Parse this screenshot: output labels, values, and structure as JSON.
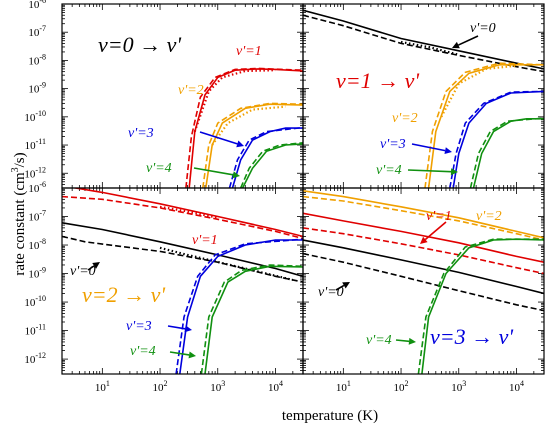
{
  "figure": {
    "ylabel_main": "rate constant (cm",
    "ylabel_sup": "3",
    "ylabel_tail": "/s)",
    "xlabel": "temperature (K)"
  },
  "chart_data": [
    {
      "type": "line",
      "panel": "top-left",
      "title": "v=0 → v'",
      "title_color": "#000000",
      "xscale": "log",
      "yscale": "log",
      "xlim": [
        2,
        30000
      ],
      "ylim": [
        3e-13,
        1e-06
      ],
      "xticks": [
        "10^1",
        "10^2",
        "10^3",
        "10^4"
      ],
      "yticks": [
        "10^-6",
        "10^-7",
        "10^-8",
        "10^-9",
        "10^-10",
        "10^-11",
        "10^-12"
      ],
      "series": [
        {
          "name": "v'=1",
          "color": "#e00000",
          "solid": [
            [
              320,
              3e-13
            ],
            [
              400,
              3e-11
            ],
            [
              600,
              6e-10
            ],
            [
              1000,
              2.5e-09
            ],
            [
              2000,
              4.5e-09
            ],
            [
              5000,
              5e-09
            ],
            [
              10000,
              4.8e-09
            ],
            [
              30000,
              4.2e-09
            ]
          ],
          "dashed": [
            [
              280,
              3e-13
            ],
            [
              350,
              2e-11
            ],
            [
              500,
              5e-10
            ],
            [
              900,
              2.5e-09
            ],
            [
              2000,
              4.8e-09
            ],
            [
              5000,
              5.2e-09
            ],
            [
              30000,
              4.5e-09
            ]
          ],
          "dotted": [
            [
              400,
              3e-11
            ],
            [
              700,
              8e-10
            ],
            [
              1200,
              2.5e-09
            ],
            [
              3000,
              4.2e-09
            ],
            [
              10000,
              4.5e-09
            ]
          ],
          "label": "v'=1"
        },
        {
          "name": "v'=2",
          "color": "#f0a000",
          "solid": [
            [
              620,
              3e-13
            ],
            [
              800,
              1e-11
            ],
            [
              1200,
              6e-11
            ],
            [
              3000,
              2e-10
            ],
            [
              8000,
              2.8e-10
            ],
            [
              30000,
              2.6e-10
            ]
          ],
          "dashed": [
            [
              550,
              3e-13
            ],
            [
              700,
              1e-11
            ],
            [
              1000,
              6e-11
            ],
            [
              2500,
              2e-10
            ],
            [
              8000,
              3e-10
            ],
            [
              30000,
              2.8e-10
            ]
          ],
          "dotted": [
            [
              800,
              1e-11
            ],
            [
              1500,
              6e-11
            ],
            [
              4000,
              1.8e-10
            ],
            [
              15000,
              2.3e-10
            ]
          ],
          "label": "v'=2"
        },
        {
          "name": "v'=3",
          "color": "#0000dd",
          "solid": [
            [
              1800,
              3e-13
            ],
            [
              2500,
              3e-12
            ],
            [
              4000,
              1.5e-11
            ],
            [
              8000,
              3e-11
            ],
            [
              15000,
              4e-11
            ],
            [
              30000,
              4e-11
            ]
          ],
          "dashed": [
            [
              1600,
              3e-13
            ],
            [
              2200,
              3e-12
            ],
            [
              3500,
              1.5e-11
            ],
            [
              7000,
              3e-11
            ],
            [
              30000,
              4.2e-11
            ]
          ],
          "label": "v'=3"
        },
        {
          "name": "v'=4",
          "color": "#109010",
          "solid": [
            [
              2700,
              3e-13
            ],
            [
              4000,
              1.5e-12
            ],
            [
              7000,
              6e-12
            ],
            [
              15000,
              1e-11
            ],
            [
              30000,
              1.1e-11
            ]
          ],
          "dashed": [
            [
              2500,
              3e-13
            ],
            [
              3500,
              1.5e-12
            ],
            [
              6000,
              6e-12
            ],
            [
              12000,
              1e-11
            ],
            [
              30000,
              1.2e-11
            ]
          ],
          "label": "v'=4"
        }
      ]
    },
    {
      "type": "line",
      "panel": "top-right",
      "title": "v=1 → v'",
      "title_color": "#e00000",
      "xscale": "log",
      "yscale": "log",
      "xlim": [
        2,
        30000
      ],
      "ylim": [
        3e-13,
        1e-06
      ],
      "series": [
        {
          "name": "v'=0",
          "color": "#000000",
          "solid": [
            [
              2,
              6e-07
            ],
            [
              10,
              2.5e-07
            ],
            [
              100,
              6e-08
            ],
            [
              1000,
              2.2e-08
            ],
            [
              10000,
              8e-09
            ],
            [
              30000,
              5e-09
            ]
          ],
          "dashed": [
            [
              2,
              4e-07
            ],
            [
              10,
              1.7e-07
            ],
            [
              100,
              4e-08
            ],
            [
              1000,
              1.5e-08
            ],
            [
              10000,
              6e-09
            ],
            [
              30000,
              4e-09
            ]
          ],
          "dotted": [
            [
              100,
              4.5e-08
            ],
            [
              300,
              3e-08
            ],
            [
              1000,
              1.6e-08
            ]
          ],
          "label": "v'=0"
        },
        {
          "name": "v'=2",
          "color": "#f0a000",
          "solid": [
            [
              300,
              3e-13
            ],
            [
              400,
              3e-11
            ],
            [
              700,
              8e-10
            ],
            [
              1500,
              3.5e-09
            ],
            [
              5000,
              7e-09
            ],
            [
              30000,
              7e-09
            ]
          ],
          "dashed": [
            [
              260,
              3e-13
            ],
            [
              350,
              3e-11
            ],
            [
              600,
              8e-10
            ],
            [
              1300,
              3.8e-09
            ],
            [
              5000,
              8e-09
            ],
            [
              30000,
              7e-09
            ]
          ],
          "dotted": [
            [
              500,
              1e-10
            ],
            [
              1000,
              1.5e-09
            ],
            [
              3000,
              5e-09
            ],
            [
              10000,
              6.5e-09
            ]
          ],
          "label": "v'=2"
        },
        {
          "name": "v'=3",
          "color": "#0000dd",
          "solid": [
            [
              800,
              3e-13
            ],
            [
              1000,
              5e-12
            ],
            [
              1500,
              6e-11
            ],
            [
              3000,
              3e-10
            ],
            [
              8000,
              7e-10
            ],
            [
              30000,
              8e-10
            ]
          ],
          "dashed": [
            [
              700,
              3e-13
            ],
            [
              900,
              5e-12
            ],
            [
              1300,
              6e-11
            ],
            [
              2700,
              3e-10
            ],
            [
              8000,
              7.5e-10
            ],
            [
              30000,
              8e-10
            ]
          ],
          "label": "v'=3"
        },
        {
          "name": "v'=4",
          "color": "#109010",
          "solid": [
            [
              1800,
              3e-13
            ],
            [
              2500,
              5e-12
            ],
            [
              4000,
              3e-11
            ],
            [
              8000,
              7e-11
            ],
            [
              15000,
              8.5e-11
            ],
            [
              30000,
              8.5e-11
            ]
          ],
          "dashed": [
            [
              1600,
              3e-13
            ],
            [
              2200,
              5e-12
            ],
            [
              3500,
              3e-11
            ],
            [
              7000,
              7e-11
            ],
            [
              30000,
              9e-11
            ]
          ],
          "label": "v'=4"
        }
      ]
    },
    {
      "type": "line",
      "panel": "bottom-left",
      "title": "v=2 → v'",
      "title_color": "#f0a000",
      "xscale": "log",
      "yscale": "log",
      "xlim": [
        2,
        30000
      ],
      "ylim": [
        3e-13,
        1e-06
      ],
      "series": [
        {
          "name": "v'=1",
          "color": "#e00000",
          "solid": [
            [
              2,
              1.2e-06
            ],
            [
              10,
              7e-07
            ],
            [
              100,
              2.8e-07
            ],
            [
              1000,
              1e-07
            ],
            [
              10000,
              3.5e-08
            ],
            [
              30000,
              2e-08
            ]
          ],
          "dashed": [
            [
              2,
              5e-07
            ],
            [
              10,
              4e-07
            ],
            [
              100,
              2e-07
            ],
            [
              1000,
              8e-08
            ],
            [
              10000,
              3e-08
            ],
            [
              30000,
              1.7e-08
            ]
          ],
          "dotted": [
            [
              100,
              2.2e-07
            ],
            [
              300,
              1.5e-07
            ],
            [
              1000,
              9e-08
            ]
          ],
          "label": "v'=1"
        },
        {
          "name": "v'=0",
          "color": "#000000",
          "solid": [
            [
              2,
              6e-08
            ],
            [
              10,
              3.5e-08
            ],
            [
              100,
              1.3e-08
            ],
            [
              1000,
              4.5e-09
            ],
            [
              10000,
              1.5e-09
            ],
            [
              30000,
              8e-10
            ]
          ],
          "dashed": [
            [
              2,
              2e-08
            ],
            [
              5,
              1.3e-08
            ],
            [
              20,
              9e-09
            ],
            [
              100,
              6e-09
            ],
            [
              1000,
              2.5e-09
            ],
            [
              10000,
              8e-10
            ],
            [
              30000,
              5e-10
            ]
          ],
          "dotted": [
            [
              100,
              8e-09
            ],
            [
              300,
              4.5e-09
            ],
            [
              3000,
              1.5e-09
            ],
            [
              20000,
              6e-10
            ]
          ],
          "label": "v'=0"
        },
        {
          "name": "v'=3",
          "color": "#0000dd",
          "solid": [
            [
              220,
              3e-13
            ],
            [
              300,
              3e-11
            ],
            [
              500,
              8e-10
            ],
            [
              1000,
              4e-09
            ],
            [
              3000,
              1e-08
            ],
            [
              10000,
              1.5e-08
            ],
            [
              30000,
              1.5e-08
            ]
          ],
          "dashed": [
            [
              190,
              3e-13
            ],
            [
              260,
              3e-11
            ],
            [
              450,
              8e-10
            ],
            [
              900,
              4.5e-09
            ],
            [
              3000,
              1.1e-08
            ],
            [
              30000,
              1.6e-08
            ]
          ],
          "label": "v'=3"
        },
        {
          "name": "v'=4",
          "color": "#109010",
          "solid": [
            [
              600,
              3e-13
            ],
            [
              800,
              3e-11
            ],
            [
              1500,
              5e-10
            ],
            [
              3000,
              1.2e-09
            ],
            [
              8000,
              1.8e-09
            ],
            [
              30000,
              1.7e-09
            ]
          ],
          "dashed": [
            [
              520,
              3e-13
            ],
            [
              700,
              3e-11
            ],
            [
              1300,
              5e-10
            ],
            [
              2600,
              1.3e-09
            ],
            [
              8000,
              2e-09
            ],
            [
              30000,
              1.8e-09
            ]
          ],
          "label": "v'=4"
        }
      ]
    },
    {
      "type": "line",
      "panel": "bottom-right",
      "title": "v=3 → v'",
      "title_color": "#0000dd",
      "xscale": "log",
      "yscale": "log",
      "xlim": [
        2,
        30000
      ],
      "ylim": [
        3e-13,
        1e-06
      ],
      "series": [
        {
          "name": "v'=2",
          "color": "#f0a000",
          "solid": [
            [
              2,
              8e-07
            ],
            [
              10,
              5e-07
            ],
            [
              100,
              2.2e-07
            ],
            [
              1000,
              9e-08
            ],
            [
              10000,
              3e-08
            ],
            [
              30000,
              1.8e-08
            ]
          ],
          "dashed": [
            [
              2,
              5e-07
            ],
            [
              10,
              3.5e-07
            ],
            [
              100,
              1.6e-07
            ],
            [
              1000,
              7e-08
            ],
            [
              10000,
              2.5e-08
            ],
            [
              30000,
              1.5e-08
            ]
          ],
          "label": "v'=2"
        },
        {
          "name": "v'=1",
          "color": "#e00000",
          "solid": [
            [
              2,
              1.3e-07
            ],
            [
              10,
              7e-08
            ],
            [
              100,
              3e-08
            ],
            [
              1000,
              1.2e-08
            ],
            [
              10000,
              4e-09
            ],
            [
              30000,
              2.5e-09
            ]
          ],
          "dashed": [
            [
              2,
              4e-08
            ],
            [
              10,
              2.5e-08
            ],
            [
              100,
              1.1e-08
            ],
            [
              1000,
              4.5e-09
            ],
            [
              10000,
              1.6e-09
            ],
            [
              30000,
              1e-09
            ]
          ],
          "label": "v'=1"
        },
        {
          "name": "v'=0",
          "color": "#000000",
          "solid": [
            [
              2,
              1.5e-08
            ],
            [
              10,
              8e-09
            ],
            [
              100,
              3e-09
            ],
            [
              1000,
              1.1e-09
            ],
            [
              10000,
              3.5e-10
            ],
            [
              30000,
              2e-10
            ]
          ],
          "dashed": [
            [
              2,
              5e-09
            ],
            [
              10,
              2.5e-09
            ],
            [
              100,
              8e-10
            ],
            [
              1000,
              2.5e-10
            ],
            [
              10000,
              8e-11
            ],
            [
              30000,
              5e-11
            ]
          ],
          "label": "v'=0"
        },
        {
          "name": "v'=4",
          "color": "#109010",
          "solid": [
            [
              230,
              3e-13
            ],
            [
              300,
              3e-11
            ],
            [
              600,
              1e-09
            ],
            [
              1500,
              8e-09
            ],
            [
              4000,
              1.5e-08
            ],
            [
              10000,
              1.6e-08
            ],
            [
              30000,
              1.5e-08
            ]
          ],
          "dashed": [
            [
              200,
              3e-13
            ],
            [
              270,
              3e-11
            ],
            [
              550,
              1e-09
            ],
            [
              1300,
              8.5e-09
            ],
            [
              4000,
              1.6e-08
            ],
            [
              30000,
              1.6e-08
            ]
          ],
          "label": "v'=4"
        }
      ]
    }
  ]
}
